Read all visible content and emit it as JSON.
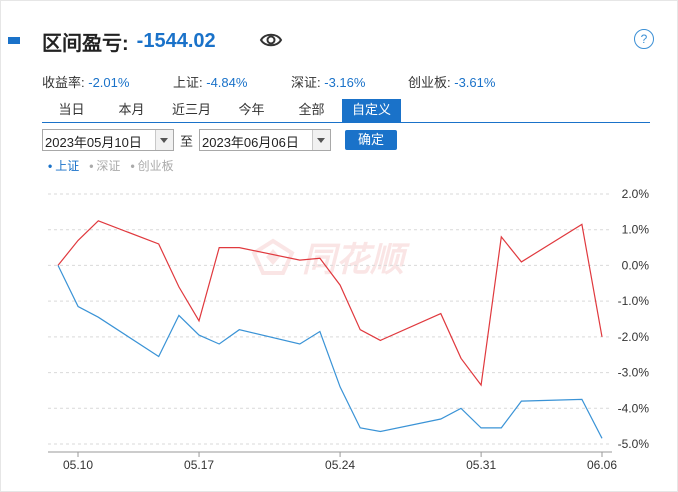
{
  "header": {
    "label": "区间盈亏:",
    "value": "-1544.02"
  },
  "stats": [
    {
      "label": "收益率:",
      "value": "-2.01%"
    },
    {
      "label": "上证:",
      "value": "-4.84%"
    },
    {
      "label": "深证:",
      "value": "-3.16%"
    },
    {
      "label": "创业板:",
      "value": "-3.61%"
    }
  ],
  "tabs": [
    "当日",
    "本月",
    "近三月",
    "今年",
    "全部",
    "自定义"
  ],
  "active_tab": "自定义",
  "date_range": {
    "start": "2023年05月10日",
    "separator": "至",
    "end": "2023年06月06日",
    "confirm": "确定"
  },
  "legend": [
    {
      "name": "上证",
      "active": true
    },
    {
      "name": "深证",
      "active": false
    },
    {
      "name": "创业板",
      "active": false
    }
  ],
  "watermark": "同花顺",
  "help": "?",
  "colors": {
    "accent": "#1a72c9",
    "red_line": "#e0393e",
    "blue_line": "#3a93d6"
  },
  "chart_data": {
    "type": "line",
    "x_ticks": [
      "05.10",
      "05.17",
      "05.24",
      "05.31",
      "06.06"
    ],
    "y_ticks": [
      "2.0%",
      "1.0%",
      "0.0%",
      "-1.0%",
      "-2.0%",
      "-3.0%",
      "-4.0%",
      "-5.0%"
    ],
    "ylim": [
      -5,
      2
    ],
    "dates": [
      "05.10",
      "05.11",
      "05.12",
      "05.15",
      "05.16",
      "05.17",
      "05.18",
      "05.19",
      "05.22",
      "05.23",
      "05.24",
      "05.25",
      "05.26",
      "05.29",
      "05.30",
      "05.31",
      "06.01",
      "06.02",
      "06.05",
      "06.06"
    ],
    "series": [
      {
        "values": [
          0.0,
          0.7,
          1.25,
          0.6,
          -0.6,
          -1.55,
          0.5,
          0.5,
          0.15,
          0.2,
          -0.55,
          -1.8,
          -2.1,
          -1.35,
          -2.6,
          -3.35,
          0.8,
          0.1,
          1.15,
          -2.0
        ]
      },
      {
        "values": [
          0.0,
          -1.15,
          -1.45,
          -2.55,
          -1.4,
          -1.95,
          -2.2,
          -1.8,
          -2.2,
          -1.85,
          -3.4,
          -4.55,
          -4.65,
          -4.3,
          -4.0,
          -4.55,
          -4.55,
          -3.8,
          -3.75,
          -4.84
        ]
      }
    ],
    "grid": true
  }
}
